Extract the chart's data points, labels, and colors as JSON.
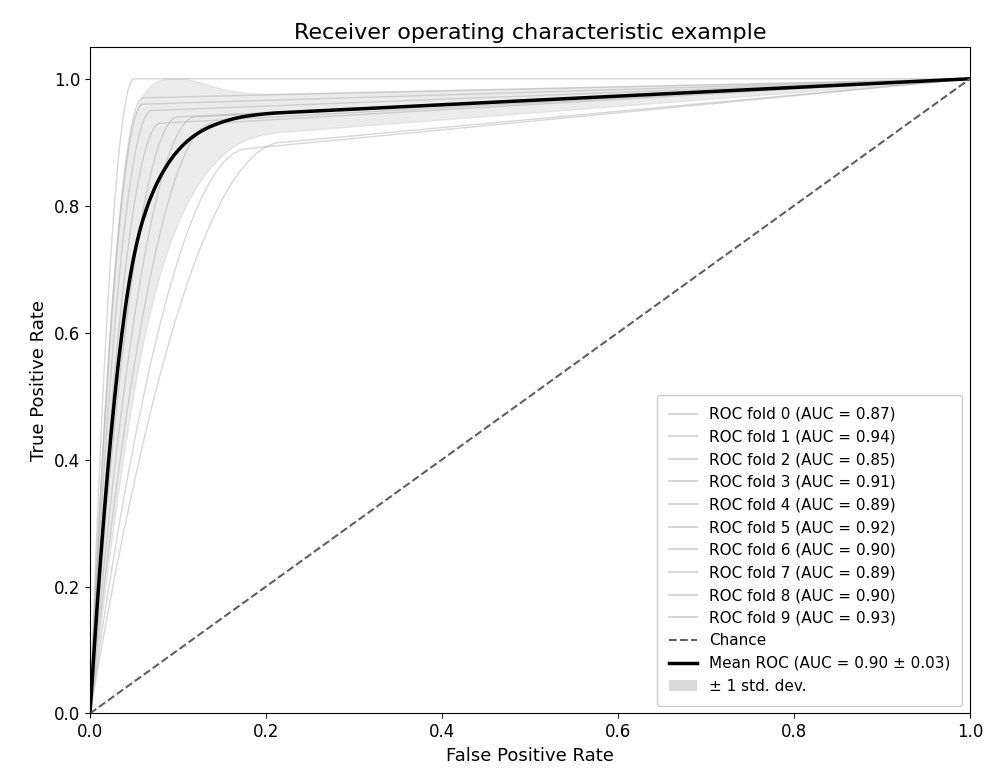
{
  "title": "Receiver operating characteristic example",
  "xlabel": "False Positive Rate",
  "ylabel": "True Positive Rate",
  "folds": [
    {
      "auc": 0.87,
      "label": "ROC fold 0 (AUC = 0.87)",
      "knee_fpr": 0.18,
      "knee_tpr": 0.89
    },
    {
      "auc": 0.94,
      "label": "ROC fold 1 (AUC = 0.94)",
      "knee_fpr": 0.05,
      "knee_tpr": 1.0
    },
    {
      "auc": 0.85,
      "label": "ROC fold 2 (AUC = 0.85)",
      "knee_fpr": 0.22,
      "knee_tpr": 0.9
    },
    {
      "auc": 0.91,
      "label": "ROC fold 3 (AUC = 0.91)",
      "knee_fpr": 0.06,
      "knee_tpr": 0.96
    },
    {
      "auc": 0.89,
      "label": "ROC fold 4 (AUC = 0.89)",
      "knee_fpr": 0.08,
      "knee_tpr": 0.93
    },
    {
      "auc": 0.92,
      "label": "ROC fold 5 (AUC = 0.92)",
      "knee_fpr": 0.07,
      "knee_tpr": 0.95
    },
    {
      "auc": 0.9,
      "label": "ROC fold 6 (AUC = 0.90)",
      "knee_fpr": 0.1,
      "knee_tpr": 0.94
    },
    {
      "auc": 0.89,
      "label": "ROC fold 7 (AUC = 0.89)",
      "knee_fpr": 0.14,
      "knee_tpr": 0.93
    },
    {
      "auc": 0.9,
      "label": "ROC fold 8 (AUC = 0.90)",
      "knee_fpr": 0.12,
      "knee_tpr": 0.94
    },
    {
      "auc": 0.93,
      "label": "ROC fold 9 (AUC = 0.93)",
      "knee_fpr": 0.06,
      "knee_tpr": 0.97
    }
  ],
  "mean_auc": 0.9,
  "std_auc": 0.03,
  "mean_label": "Mean ROC (AUC = 0.90 ± 0.03)",
  "chance_label": "Chance",
  "std_label": "± 1 std. dev.",
  "fold_color": "#b0b0b0",
  "fold_alpha": 0.5,
  "mean_color": "#000000",
  "std_fill_color": "#c0c0c0",
  "std_fill_alpha": 0.3,
  "chance_color": "#606060",
  "background_color": "#ffffff",
  "title_fontsize": 16,
  "label_fontsize": 13,
  "tick_fontsize": 12,
  "legend_fontsize": 11,
  "xlim": [
    0.0,
    1.0
  ],
  "ylim": [
    0.0,
    1.05
  ]
}
